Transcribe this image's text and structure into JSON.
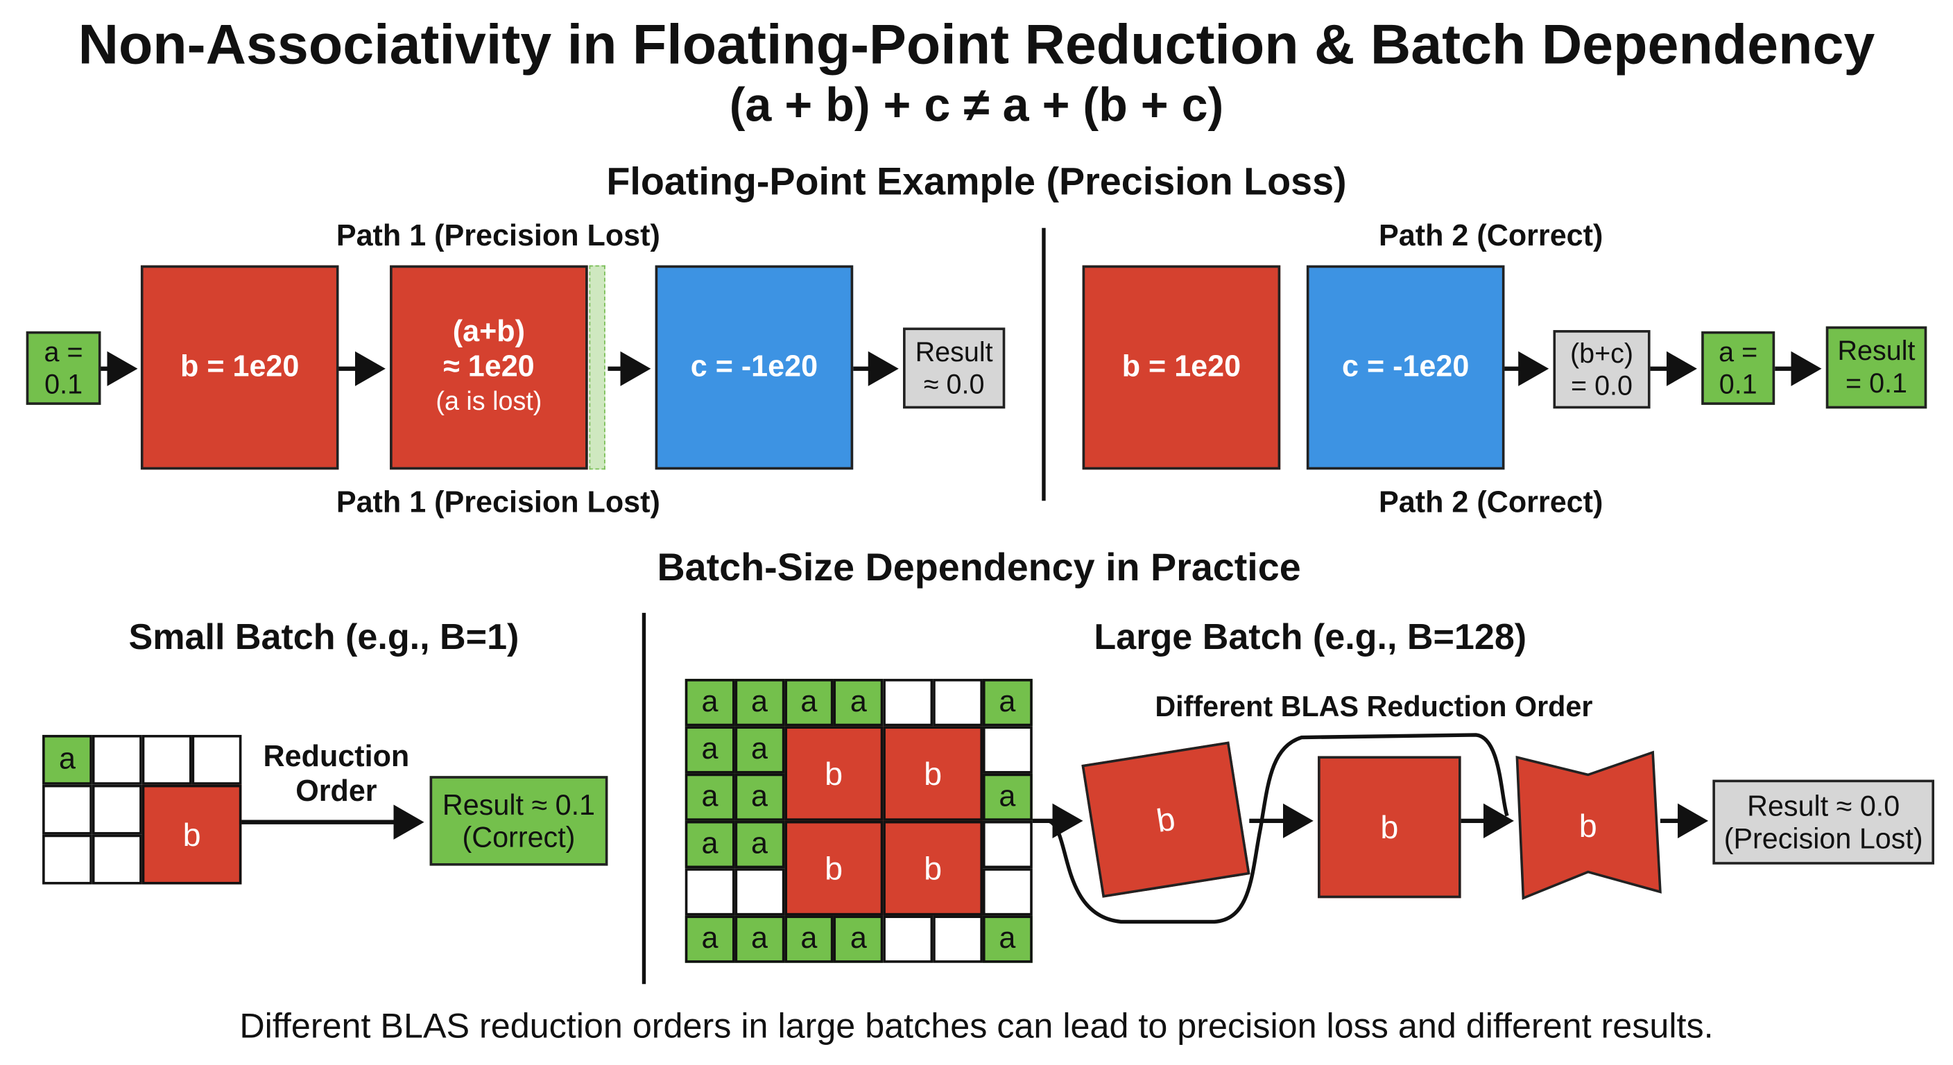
{
  "title": "Non-Associativity in Floating-Point Reduction & Batch Dependency",
  "formula": "(a + b) + c ≠ a + (b + c)",
  "fp_example": {
    "heading": "Floating-Point Example (Precision Loss)",
    "path1": {
      "label_top": "Path 1 (Precision Lost)",
      "label_bottom": "Path 1 (Precision Lost)",
      "a_box": [
        "a =",
        "0.1"
      ],
      "b_box": "b = 1e20",
      "ab_box": [
        "(a+b)",
        "≈ 1e20",
        "(a is lost)"
      ],
      "c_box": "c = -1e20",
      "result_box": [
        "Result",
        "≈ 0.0"
      ]
    },
    "path2": {
      "label_top": "Path 2 (Correct)",
      "label_bottom": "Path 2 (Correct)",
      "b_box": "b = 1e20",
      "c_box": "c = -1e20",
      "bc_box": [
        "(b+c)",
        "= 0.0"
      ],
      "a_box": [
        "a =",
        "0.1"
      ],
      "result_box": [
        "Result",
        "= 0.1"
      ]
    }
  },
  "batch": {
    "heading": "Batch-Size Dependency in Practice",
    "small": {
      "title": "Small Batch (e.g., B=1)",
      "cell_a": "a",
      "cell_b": "b",
      "reduction_label": [
        "Reduction",
        "Order"
      ],
      "result_box": [
        "Result ≈ 0.1",
        "(Correct)"
      ]
    },
    "large": {
      "title": "Large Batch (e.g., B=128)",
      "grid": [
        "aaaa__a",
        "aaBB__",
        "aaBBa",
        "aaBB__",
        "__BB__",
        "aaaa__a"
      ],
      "cell_a": "a",
      "cell_b": "b",
      "blas_label": "Different BLAS Reduction Order",
      "stage_labels": [
        "b",
        "b",
        "b"
      ],
      "result_box": [
        "Result ≈ 0.0",
        "(Precision Lost)"
      ]
    }
  },
  "footer": "Different BLAS reduction orders in large batches can lead to precision loss and different results.",
  "colors": {
    "red": "#d5412f",
    "blue": "#3d93e3",
    "green": "#74c04c",
    "grey": "#d6d6d6"
  }
}
